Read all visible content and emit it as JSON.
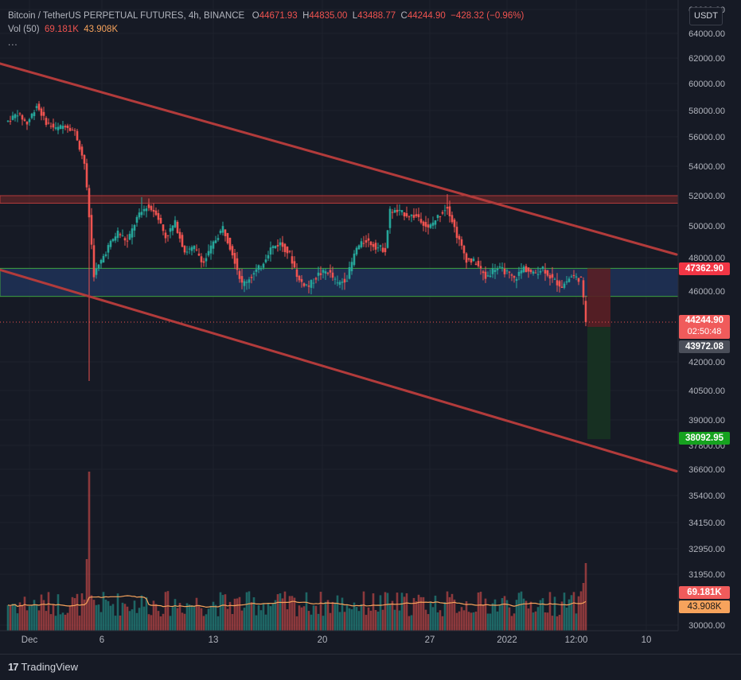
{
  "header": {
    "symbol": "Bitcoin / TetherUS PERPETUAL FUTURES, 4h, BINANCE",
    "o_label": "O",
    "o_value": "44671.93",
    "h_label": "H",
    "h_value": "44835.00",
    "l_label": "L",
    "l_value": "43488.77",
    "c_label": "C",
    "c_value": "44244.90",
    "change": "−428.32 (−0.96%)",
    "vol_label": "Vol (50)",
    "vol_value": "69.181K",
    "vol_ma_value": "43.908K",
    "more": "..."
  },
  "currency": "USDT",
  "footer": {
    "brand": "TradingView",
    "logo": "tradingview-logo-icon"
  },
  "price_tags": {
    "target_top": "47362.90",
    "last_price": "44244.90",
    "countdown": "02:50:48",
    "entry": "43972.08",
    "target_bottom": "38092.95",
    "volume": "69.181K",
    "volume_ma": "43.908K"
  },
  "colors": {
    "background": "#161a25",
    "up": "#26a69a",
    "down": "#ef5350",
    "trendline": "#b23b3b",
    "zone_fill": "#1f3358",
    "zone_border": "#3ea23e",
    "resistance": "#7a2a2a",
    "stop_fill": "#5a1f25",
    "profit_fill": "#173222",
    "volume_ma": "#f7a35c"
  },
  "chart_data": {
    "type": "candlestick",
    "symbol": "BTCUSDT.P",
    "interval": "4h",
    "y_axis_ticks": [
      "66000.00",
      "64000.00",
      "62000.00",
      "60000.00",
      "58000.00",
      "56000.00",
      "54000.00",
      "52000.00",
      "50000.00",
      "48000.00",
      "46000.00",
      "42000.00",
      "40500.00",
      "39000.00",
      "37800.00",
      "36600.00",
      "35400.00",
      "34150.00",
      "32950.00",
      "31950.00",
      "30000.00"
    ],
    "x_axis_ticks": [
      "Dec",
      "6",
      "13",
      "20",
      "27",
      "2022",
      "12:00",
      "10"
    ],
    "ylim": [
      30000,
      66000
    ],
    "price_path": [
      {
        "t": 0,
        "p": 57200
      },
      {
        "t": 2,
        "p": 57800
      },
      {
        "t": 4,
        "p": 57000
      },
      {
        "t": 6,
        "p": 58400
      },
      {
        "t": 8,
        "p": 57100
      },
      {
        "t": 10,
        "p": 56600
      },
      {
        "t": 12,
        "p": 56900
      },
      {
        "t": 14,
        "p": 56400
      },
      {
        "t": 16,
        "p": 54200
      },
      {
        "t": 17,
        "p": 50600
      },
      {
        "t": 18,
        "p": 47000
      },
      {
        "t": 19,
        "p": 47500
      },
      {
        "t": 21,
        "p": 48700
      },
      {
        "t": 23,
        "p": 49600
      },
      {
        "t": 25,
        "p": 49000
      },
      {
        "t": 27,
        "p": 50500
      },
      {
        "t": 29,
        "p": 51300
      },
      {
        "t": 31,
        "p": 50900
      },
      {
        "t": 33,
        "p": 49300
      },
      {
        "t": 35,
        "p": 50200
      },
      {
        "t": 37,
        "p": 48400
      },
      {
        "t": 39,
        "p": 48600
      },
      {
        "t": 41,
        "p": 47700
      },
      {
        "t": 43,
        "p": 48900
      },
      {
        "t": 45,
        "p": 49900
      },
      {
        "t": 47,
        "p": 48300
      },
      {
        "t": 49,
        "p": 46400
      },
      {
        "t": 51,
        "p": 46900
      },
      {
        "t": 53,
        "p": 47500
      },
      {
        "t": 55,
        "p": 48600
      },
      {
        "t": 57,
        "p": 48900
      },
      {
        "t": 59,
        "p": 48200
      },
      {
        "t": 61,
        "p": 46600
      },
      {
        "t": 63,
        "p": 46300
      },
      {
        "t": 65,
        "p": 47000
      },
      {
        "t": 67,
        "p": 47200
      },
      {
        "t": 69,
        "p": 46400
      },
      {
        "t": 71,
        "p": 46800
      },
      {
        "t": 73,
        "p": 48600
      },
      {
        "t": 75,
        "p": 49100
      },
      {
        "t": 77,
        "p": 48700
      },
      {
        "t": 79,
        "p": 48500
      },
      {
        "t": 80,
        "p": 51000
      },
      {
        "t": 82,
        "p": 50900
      },
      {
        "t": 84,
        "p": 50700
      },
      {
        "t": 86,
        "p": 50600
      },
      {
        "t": 88,
        "p": 49800
      },
      {
        "t": 90,
        "p": 50600
      },
      {
        "t": 92,
        "p": 51300
      },
      {
        "t": 94,
        "p": 49400
      },
      {
        "t": 96,
        "p": 47900
      },
      {
        "t": 98,
        "p": 47700
      },
      {
        "t": 100,
        "p": 46800
      },
      {
        "t": 102,
        "p": 47400
      },
      {
        "t": 104,
        "p": 47200
      },
      {
        "t": 106,
        "p": 46700
      },
      {
        "t": 108,
        "p": 47400
      },
      {
        "t": 110,
        "p": 47000
      },
      {
        "t": 112,
        "p": 47400
      },
      {
        "t": 114,
        "p": 46700
      },
      {
        "t": 116,
        "p": 46300
      },
      {
        "t": 118,
        "p": 46900
      },
      {
        "t": 120,
        "p": 46700
      },
      {
        "t": 121,
        "p": 44244.9
      }
    ],
    "wick_extremes": [
      {
        "t": 17,
        "low": 41000
      },
      {
        "t": 28,
        "high": 51900
      },
      {
        "t": 92,
        "high": 52100
      }
    ],
    "last_price": 44244.9,
    "demand_zone": [
      45700,
      47362.9
    ],
    "resistance_zone": [
      51500,
      52000
    ],
    "trendlines": [
      {
        "name": "upper",
        "from": {
          "t": -2,
          "p": 61600
        },
        "to": {
          "t": 140,
          "p": 48200
        }
      },
      {
        "name": "lower",
        "from": {
          "t": -2,
          "p": 47300
        },
        "to": {
          "t": 140,
          "p": 36500
        }
      }
    ],
    "trade_setup": {
      "entry": 43972.08,
      "stop": 47362.9,
      "target": 38092.95
    },
    "volume": {
      "last": 69.181,
      "ma": 43.908,
      "unit": "K",
      "spike_t": 17
    }
  }
}
